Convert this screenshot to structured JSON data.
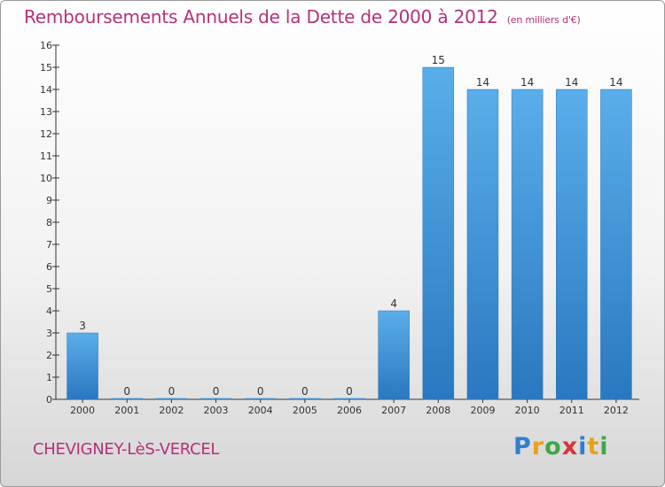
{
  "chart_data": {
    "type": "bar",
    "title": "Remboursements Annuels de la Dette de 2000 à 2012",
    "unit": "(en milliers d'€)",
    "categories": [
      "2000",
      "2001",
      "2002",
      "2003",
      "2004",
      "2005",
      "2006",
      "2007",
      "2008",
      "2009",
      "2010",
      "2011",
      "2012"
    ],
    "values": [
      3,
      0,
      0,
      0,
      0,
      0,
      0,
      4,
      15,
      14,
      14,
      14,
      14
    ],
    "ylim": [
      0,
      16
    ],
    "yticks": [
      0,
      1,
      2,
      3,
      4,
      5,
      6,
      7,
      8,
      9,
      10,
      11,
      12,
      13,
      14,
      15,
      16
    ],
    "grid": false,
    "bar_color": "#3d8fd6"
  },
  "commune": "CHEVIGNEY-LèS-VERCEL",
  "logo": {
    "letters": [
      {
        "ch": "P",
        "color": "#2f7fd0"
      },
      {
        "ch": "r",
        "color": "#e8a21a"
      },
      {
        "ch": "o",
        "color": "#3ea845"
      },
      {
        "ch": "x",
        "color": "#d8343a"
      },
      {
        "ch": "i",
        "color": "#2f7fd0"
      },
      {
        "ch": "t",
        "color": "#e8a21a"
      },
      {
        "ch": "i",
        "color": "#3ea845"
      }
    ]
  }
}
